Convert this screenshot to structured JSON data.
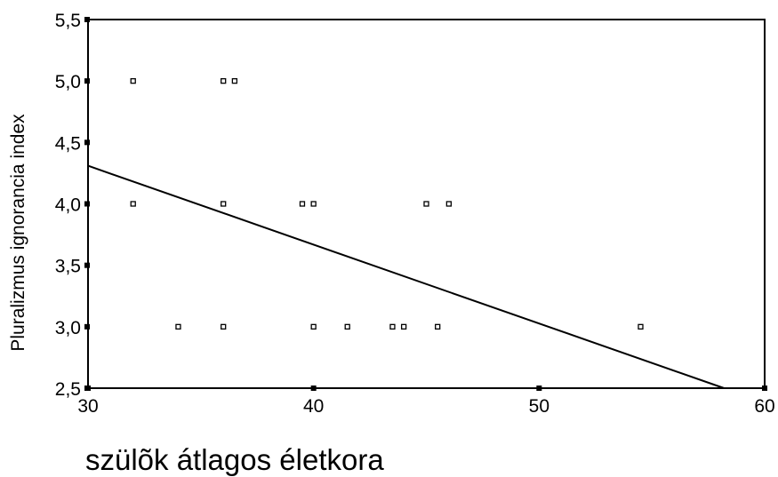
{
  "chart_data": {
    "type": "scatter",
    "title": "",
    "xlabel": "szülõk átlagos életkora",
    "ylabel": "Pluralizmus ignorancia index",
    "xlim": [
      30,
      60
    ],
    "ylim": [
      2.5,
      5.5
    ],
    "x_ticks": [
      30,
      40,
      50,
      60
    ],
    "x_tick_labels": [
      "30",
      "40",
      "50",
      "60"
    ],
    "y_ticks": [
      2.5,
      3.0,
      3.5,
      4.0,
      4.5,
      5.0,
      5.5
    ],
    "y_tick_labels": [
      "2,5",
      "3,0",
      "3,5",
      "4,0",
      "4,5",
      "5,0",
      "5,5"
    ],
    "grid": false,
    "legend": false,
    "series": [
      {
        "marker": "hollow-square",
        "points": [
          {
            "x": 32.0,
            "y": 5.0
          },
          {
            "x": 36.0,
            "y": 5.0
          },
          {
            "x": 36.5,
            "y": 5.0
          },
          {
            "x": 32.0,
            "y": 4.0
          },
          {
            "x": 36.0,
            "y": 4.0
          },
          {
            "x": 39.5,
            "y": 4.0
          },
          {
            "x": 40.0,
            "y": 4.0
          },
          {
            "x": 45.0,
            "y": 4.0
          },
          {
            "x": 46.0,
            "y": 4.0
          },
          {
            "x": 34.0,
            "y": 3.0
          },
          {
            "x": 36.0,
            "y": 3.0
          },
          {
            "x": 40.0,
            "y": 3.0
          },
          {
            "x": 41.5,
            "y": 3.0
          },
          {
            "x": 43.5,
            "y": 3.0
          },
          {
            "x": 44.0,
            "y": 3.0
          },
          {
            "x": 45.5,
            "y": 3.0
          },
          {
            "x": 54.5,
            "y": 3.0
          }
        ]
      }
    ],
    "fit_line": {
      "x": [
        30,
        58.2
      ],
      "y": [
        4.31,
        2.5
      ]
    },
    "colors": {
      "marks": "#000000",
      "background": "#ffffff"
    }
  }
}
